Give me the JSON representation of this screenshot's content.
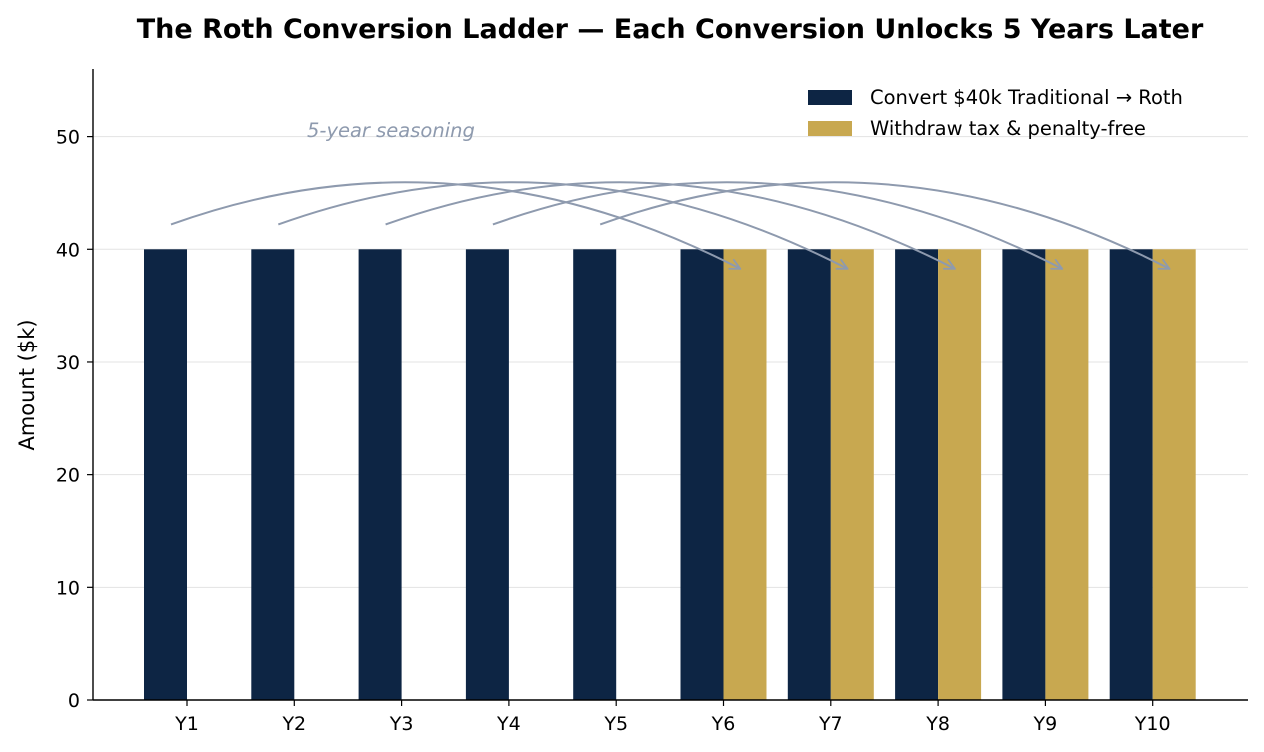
{
  "chart_data": {
    "type": "bar",
    "title": "The Roth Conversion Ladder — Each Conversion Unlocks 5 Years Later",
    "xlabel": "",
    "ylabel": "Amount ($k)",
    "categories": [
      "Y1",
      "Y2",
      "Y3",
      "Y4",
      "Y5",
      "Y6",
      "Y7",
      "Y8",
      "Y9",
      "Y10"
    ],
    "series": [
      {
        "name": "Convert $40k Traditional → Roth",
        "color": "#0d2544",
        "values": [
          40,
          40,
          40,
          40,
          40,
          40,
          40,
          40,
          40,
          40
        ]
      },
      {
        "name": "Withdraw tax & penalty-free",
        "color": "#c8a850",
        "values": [
          0,
          0,
          0,
          0,
          0,
          40,
          40,
          40,
          40,
          40
        ]
      }
    ],
    "ylim": [
      0,
      56
    ],
    "yticks": [
      0,
      10,
      20,
      30,
      40,
      50
    ],
    "grid": "y",
    "legend_position": "top-right",
    "annotation": {
      "text": "5-year seasoning",
      "color": "#8e9aae",
      "lag_years": 5,
      "arrows": [
        {
          "from": "Y1",
          "to": "Y6"
        },
        {
          "from": "Y2",
          "to": "Y7"
        },
        {
          "from": "Y3",
          "to": "Y8"
        },
        {
          "from": "Y4",
          "to": "Y9"
        },
        {
          "from": "Y5",
          "to": "Y10"
        }
      ]
    }
  }
}
